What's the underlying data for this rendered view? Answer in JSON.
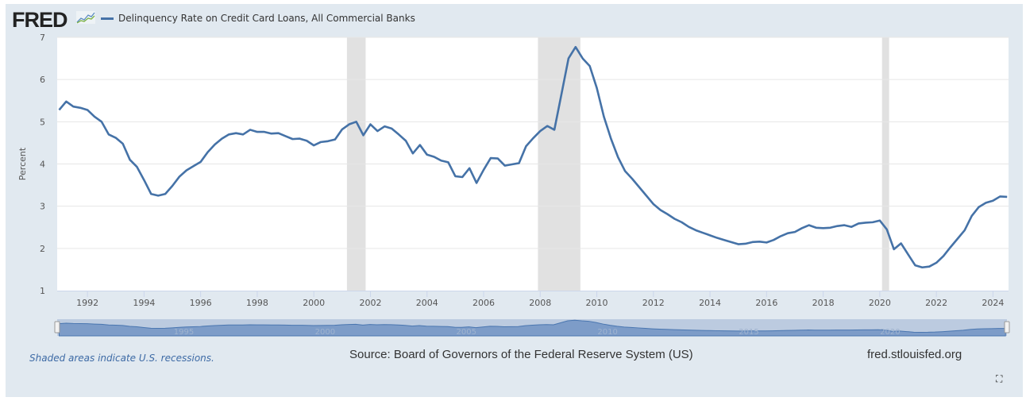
{
  "header": {
    "logo": "FRED",
    "legend_label": "Delinquency Rate on Credit Card Loans, All Commercial Banks"
  },
  "footer": {
    "note": "Shaded areas indicate U.S. recessions.",
    "source": "Source: Board of Governors of the Federal Reserve System (US)",
    "site": "fred.stlouisfed.org"
  },
  "colors": {
    "line": "#4572a7",
    "recession": "#e1e1e1",
    "background": "#e1e9f0"
  },
  "icons": {
    "fullscreen": "fullscreen-icon",
    "logo_spark": "sparkline-icon"
  },
  "chart_data": {
    "type": "line",
    "title": "Delinquency Rate on Credit Card Loans, All Commercial Banks",
    "ylabel": "Percent",
    "xlabel": "",
    "ylim": [
      1,
      7
    ],
    "xlim": [
      1990.93,
      2024.55
    ],
    "yticks": [
      1,
      2,
      3,
      4,
      5,
      6,
      7
    ],
    "xticks": [
      1992,
      1994,
      1996,
      1998,
      2000,
      2002,
      2004,
      2006,
      2008,
      2010,
      2012,
      2014,
      2016,
      2018,
      2020,
      2022,
      2024
    ],
    "navigator_ticks": [
      1995,
      2000,
      2005,
      2010,
      2015,
      2020
    ],
    "grid": true,
    "legend": "top-left",
    "recessions": [
      [
        2001.17,
        2001.83
      ],
      [
        2007.92,
        2009.42
      ],
      [
        2020.08,
        2020.33
      ]
    ],
    "start": 1991.0,
    "step": 0.25,
    "series": [
      {
        "name": "Delinquency Rate on Credit Card Loans, All Commercial Banks",
        "values": [
          5.28,
          5.48,
          5.36,
          5.33,
          5.28,
          5.12,
          5.0,
          4.7,
          4.62,
          4.48,
          4.1,
          3.93,
          3.62,
          3.29,
          3.25,
          3.29,
          3.48,
          3.7,
          3.85,
          3.95,
          4.05,
          4.28,
          4.46,
          4.6,
          4.7,
          4.73,
          4.7,
          4.81,
          4.76,
          4.76,
          4.72,
          4.73,
          4.66,
          4.59,
          4.6,
          4.55,
          4.44,
          4.52,
          4.54,
          4.58,
          4.82,
          4.94,
          5.0,
          4.68,
          4.94,
          4.78,
          4.89,
          4.84,
          4.7,
          4.55,
          4.25,
          4.45,
          4.22,
          4.17,
          4.08,
          4.04,
          3.71,
          3.69,
          3.9,
          3.55,
          3.86,
          4.14,
          4.13,
          3.96,
          3.99,
          4.02,
          4.42,
          4.61,
          4.78,
          4.9,
          4.81,
          5.65,
          6.5,
          6.77,
          6.5,
          6.32,
          5.8,
          5.12,
          4.6,
          4.16,
          3.83,
          3.65,
          3.45,
          3.25,
          3.05,
          2.91,
          2.81,
          2.7,
          2.62,
          2.51,
          2.43,
          2.37,
          2.31,
          2.25,
          2.2,
          2.15,
          2.1,
          2.11,
          2.15,
          2.16,
          2.14,
          2.2,
          2.29,
          2.36,
          2.39,
          2.48,
          2.55,
          2.49,
          2.48,
          2.49,
          2.53,
          2.55,
          2.51,
          2.59,
          2.61,
          2.62,
          2.66,
          2.45,
          1.98,
          2.12,
          1.86,
          1.6,
          1.55,
          1.57,
          1.66,
          1.82,
          2.03,
          2.23,
          2.43,
          2.77,
          2.98,
          3.08,
          3.13,
          3.23,
          3.22
        ]
      }
    ]
  }
}
